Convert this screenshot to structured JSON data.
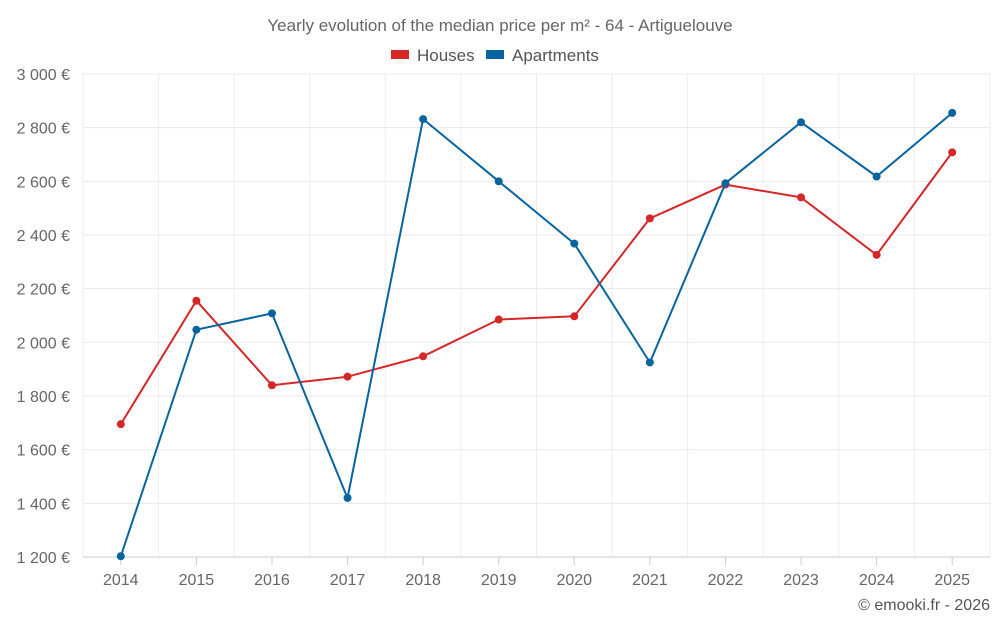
{
  "chart_data": {
    "type": "line",
    "title": "Yearly evolution of the median price per m² - 64 - Artiguelouve",
    "categories": [
      "2014",
      "2015",
      "2016",
      "2017",
      "2018",
      "2019",
      "2020",
      "2021",
      "2022",
      "2023",
      "2024",
      "2025"
    ],
    "series": [
      {
        "name": "Houses",
        "color": "#d62728",
        "values": [
          1695,
          2155,
          1840,
          1872,
          1948,
          2085,
          2097,
          2462,
          2588,
          2540,
          2326,
          2708
        ]
      },
      {
        "name": "Apartments",
        "color": "#08649e",
        "values": [
          1203,
          2047,
          2108,
          1420,
          2832,
          2600,
          2368,
          1925,
          2593,
          2820,
          2618,
          2855
        ]
      }
    ],
    "y_ticks": [
      1200,
      1400,
      1600,
      1800,
      2000,
      2200,
      2400,
      2600,
      2800,
      3000
    ],
    "y_tick_labels": [
      "1 200 €",
      "1 400 €",
      "1 600 €",
      "1 800 €",
      "2 000 €",
      "2 200 €",
      "2 400 €",
      "2 600 €",
      "2 800 €",
      "3 000 €"
    ],
    "ylim": [
      1200,
      3000
    ],
    "xlabel": "",
    "ylabel": "",
    "grid": true,
    "legend_position": "top-center"
  },
  "credit": "© emooki.fr - 2026"
}
